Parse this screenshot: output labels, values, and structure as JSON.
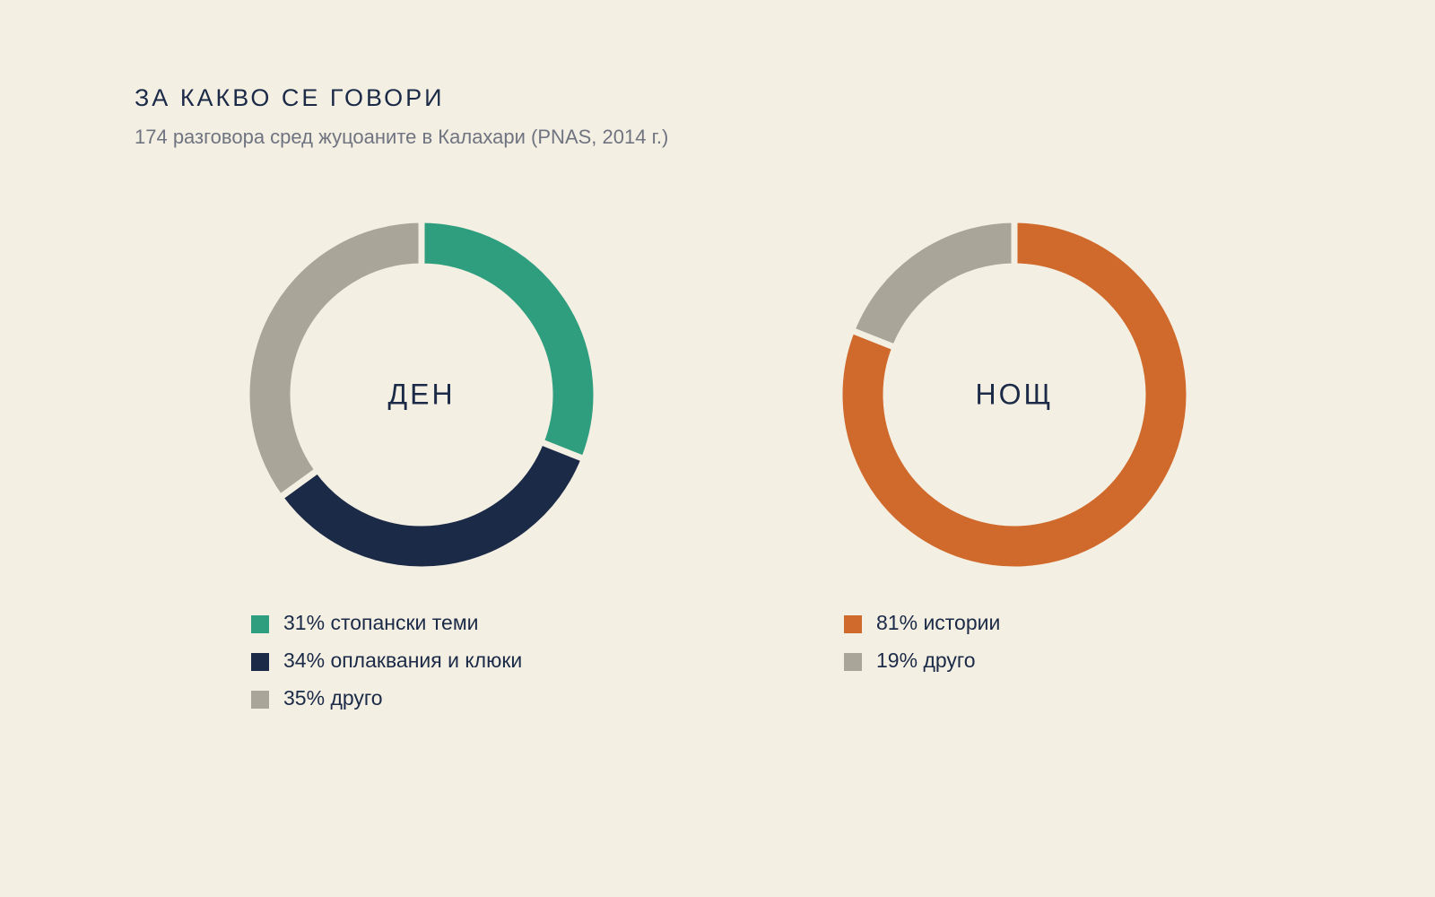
{
  "title": "ЗА КАКВО СЕ ГОВОРИ",
  "subtitle": "174 разговора сред жуцоаните в Калахари (PNAS, 2014 г.)",
  "chart_data": [
    {
      "type": "pie",
      "center_label": "ДЕН",
      "categories": [
        "стопански теми",
        "оплаквания и клюки",
        "друго"
      ],
      "values": [
        31,
        34,
        35
      ],
      "value_labels": [
        "31%",
        "34%",
        "35%"
      ],
      "colors": [
        "#2e9e7e",
        "#1b2a47",
        "#a9a598"
      ]
    },
    {
      "type": "pie",
      "center_label": "НОЩ",
      "categories": [
        "истории",
        "друго"
      ],
      "values": [
        81,
        19
      ],
      "value_labels": [
        "81%",
        "19%"
      ],
      "colors": [
        "#d06a2c",
        "#a9a598"
      ]
    }
  ]
}
